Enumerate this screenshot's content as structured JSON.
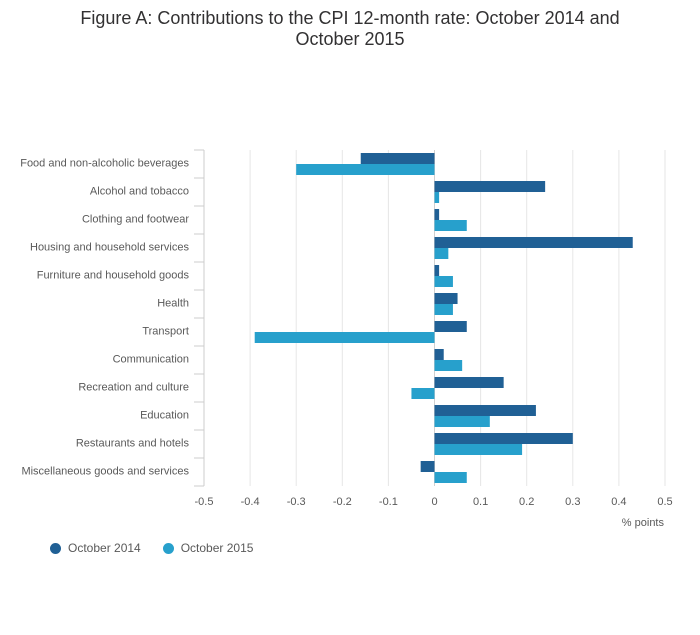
{
  "chart_data": {
    "type": "bar",
    "orientation": "horizontal",
    "title_lines": [
      "Figure A: Contributions to the CPI 12-month rate: October 2014 and",
      "October 2015"
    ],
    "xlabel": "% points",
    "ylabel": "",
    "xlim": [
      -0.5,
      0.5
    ],
    "xticks": [
      -0.5,
      -0.4,
      -0.3,
      -0.2,
      -0.1,
      0,
      0.1,
      0.2,
      0.3,
      0.4,
      0.5
    ],
    "xtick_labels": [
      "-0.5",
      "-0.4",
      "-0.3",
      "-0.2",
      "-0.1",
      "0",
      "0.1",
      "0.2",
      "0.3",
      "0.4",
      "0.5"
    ],
    "grid": true,
    "legend_position": "bottom-left",
    "categories": [
      "Food and non-alcoholic beverages",
      "Alcohol and tobacco",
      "Clothing and footwear",
      "Housing and household services",
      "Furniture and household goods",
      "Health",
      "Transport",
      "Communication",
      "Recreation and culture",
      "Education",
      "Restaurants and hotels",
      "Miscellaneous goods and services"
    ],
    "series": [
      {
        "name": "October 2014",
        "color": "#206095",
        "values": [
          -0.16,
          0.24,
          0.01,
          0.43,
          0.01,
          0.05,
          0.07,
          0.02,
          0.15,
          0.22,
          0.3,
          -0.03
        ]
      },
      {
        "name": "October 2015",
        "color": "#27a0cc",
        "values": [
          -0.3,
          0.01,
          0.07,
          0.03,
          0.04,
          0.04,
          -0.39,
          0.06,
          -0.05,
          0.12,
          0.19,
          0.07
        ]
      }
    ]
  }
}
